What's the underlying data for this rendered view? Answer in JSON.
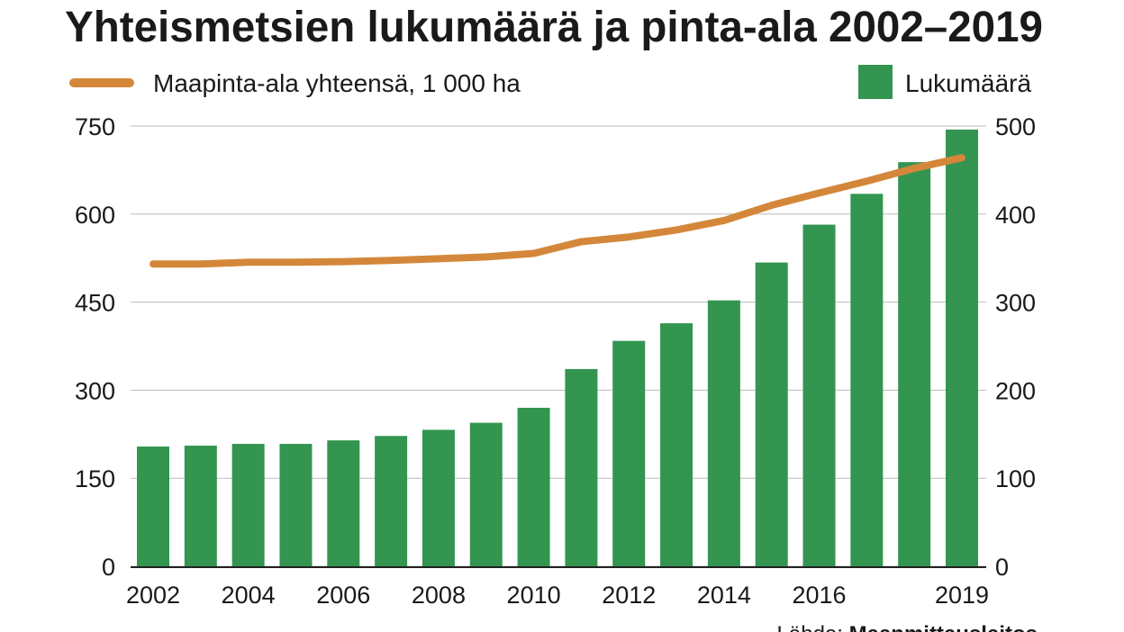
{
  "chart_data": {
    "type": "bar-line",
    "title": "Yhteismetsien lukumäärä ja pinta-ala 2002–2019",
    "categories": [
      "2002",
      null,
      "2004",
      null,
      "2006",
      null,
      "2008",
      null,
      "2010",
      null,
      "2012",
      null,
      "2014",
      null,
      "2016",
      null,
      null,
      "2019"
    ],
    "series": [
      {
        "name": "Maapinta-ala yhteensä, 1 000 ha",
        "type": "line",
        "color": "#d4873a",
        "axis": "y",
        "values": [
          515,
          515,
          518,
          518,
          519,
          521,
          524,
          527,
          533,
          553,
          561,
          573,
          589,
          615,
          636,
          656,
          678,
          696
        ]
      },
      {
        "name": "Lukumäärä",
        "type": "bar",
        "color": "#339550",
        "axis": "y2",
        "values": [
          136,
          137,
          139,
          139,
          143,
          148,
          155,
          163,
          180,
          224,
          256,
          276,
          302,
          345,
          388,
          423,
          459,
          496
        ]
      }
    ],
    "ylim": [
      0,
      750
    ],
    "yticks": [
      0,
      150,
      300,
      450,
      600,
      750
    ],
    "y2lim": [
      0,
      500
    ],
    "y2ticks": [
      0,
      100,
      200,
      300,
      400,
      500
    ],
    "grid": true,
    "source": {
      "prefix": "Lähde:",
      "name": "Maanmittauslaitos"
    }
  }
}
